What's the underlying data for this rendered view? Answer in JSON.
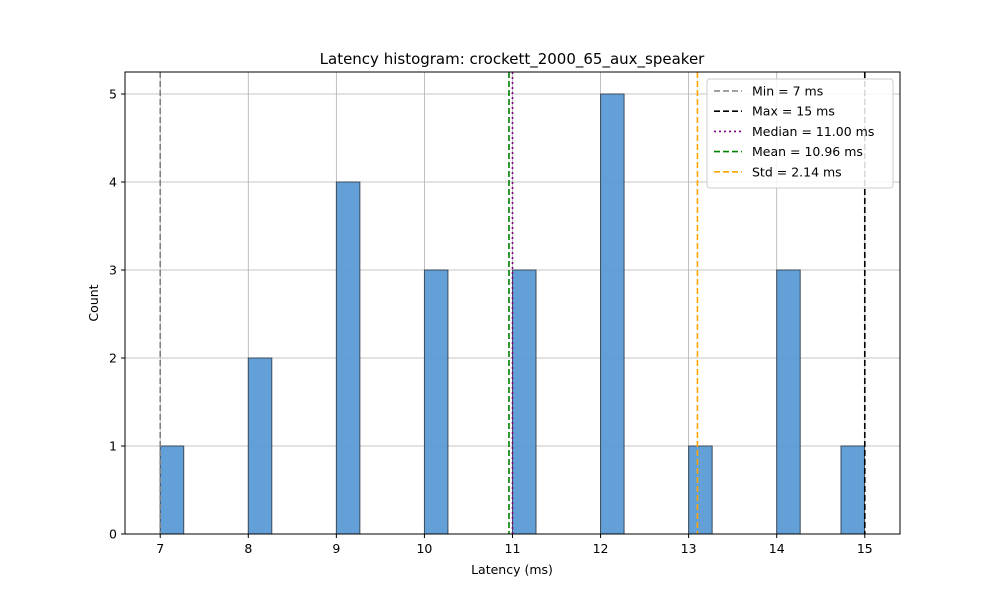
{
  "chart_data": {
    "type": "bar",
    "title": "Latency histogram: crockett_2000_65_aux_speaker",
    "xlabel": "Latency (ms)",
    "ylabel": "Count",
    "xlim": [
      6.6,
      15.4
    ],
    "ylim": [
      0,
      5.25
    ],
    "xticks": [
      7,
      8,
      9,
      10,
      11,
      12,
      13,
      14,
      15
    ],
    "yticks": [
      0,
      1,
      2,
      3,
      4,
      5
    ],
    "grid": true,
    "bin_width": 0.2667,
    "bar_color": "#5b9bd5",
    "bars": [
      {
        "x": 7.0,
        "count": 1
      },
      {
        "x": 8.0,
        "count": 2
      },
      {
        "x": 9.0,
        "count": 4
      },
      {
        "x": 10.0,
        "count": 3
      },
      {
        "x": 11.0,
        "count": 3
      },
      {
        "x": 12.0,
        "count": 5
      },
      {
        "x": 13.0,
        "count": 1
      },
      {
        "x": 14.0,
        "count": 3
      },
      {
        "x": 14.73,
        "count": 1
      }
    ],
    "reference_lines": [
      {
        "label": "Min = 7 ms",
        "x": 7.0,
        "color": "#808080",
        "style": "dashed"
      },
      {
        "label": "Max = 15 ms",
        "x": 15.0,
        "color": "#000000",
        "style": "dashed"
      },
      {
        "label": "Median = 11.00 ms",
        "x": 11.0,
        "color": "#800080",
        "style": "dotted"
      },
      {
        "label": "Mean = 10.96 ms",
        "x": 10.96,
        "color": "#008000",
        "style": "dashed"
      },
      {
        "label": "Std = 2.14 ms",
        "x": 13.1,
        "color": "#ffa500",
        "style": "dashed"
      }
    ],
    "legend_position": "top-right"
  }
}
